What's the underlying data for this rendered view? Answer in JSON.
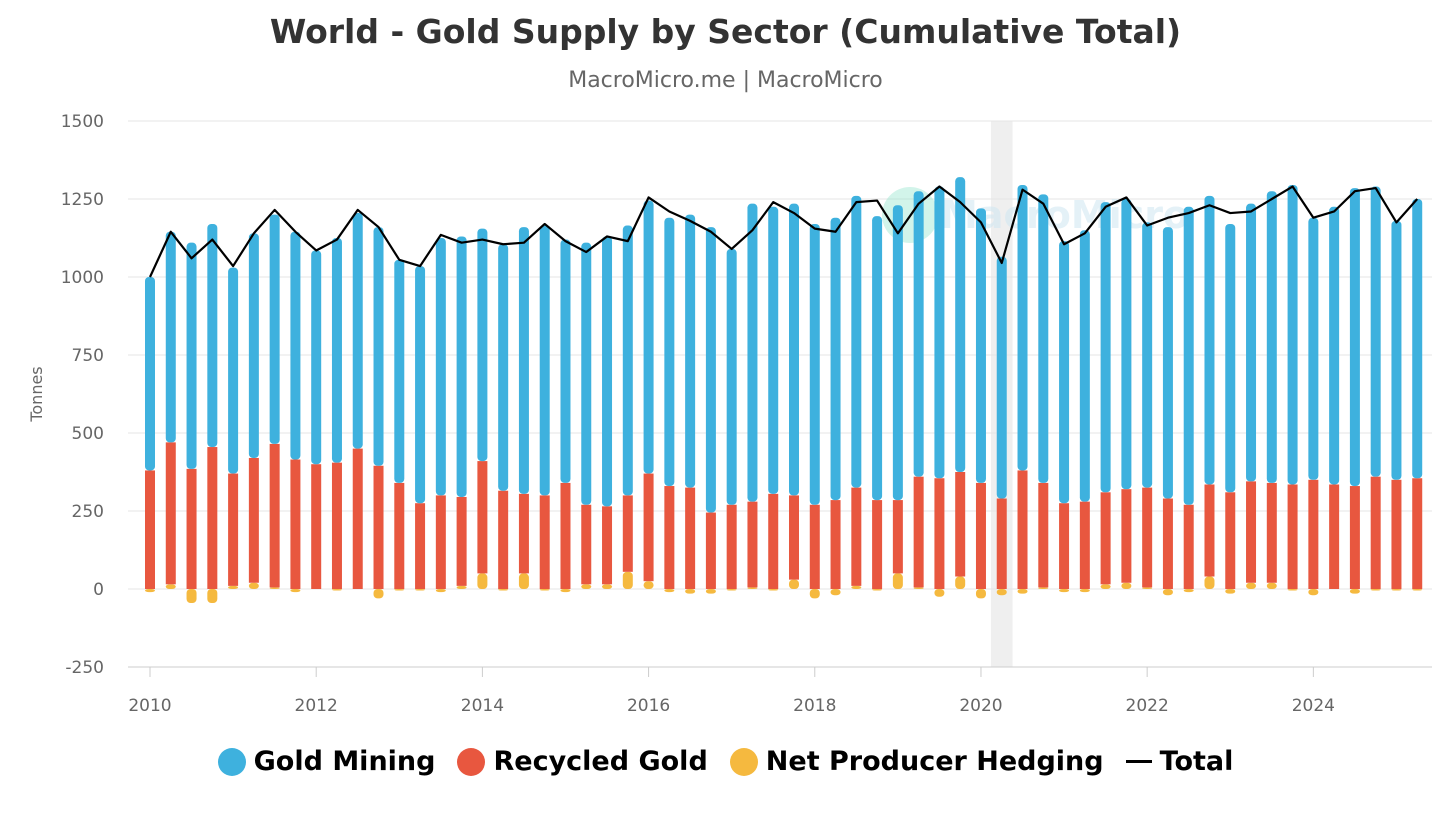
{
  "chart_data": {
    "type": "bar",
    "title": "World - Gold Supply by Sector (Cumulative Total)",
    "subtitle": "MacroMicro.me | MacroMicro",
    "watermark": "MacroMicro",
    "ylabel": "Tonnes",
    "xlabel": "",
    "ylim": [
      -250,
      1500
    ],
    "yticks": [
      "-250",
      "0",
      "250",
      "500",
      "750",
      "1000",
      "1250",
      "1500"
    ],
    "xticks": [
      "2010",
      "2012",
      "2014",
      "2016",
      "2018",
      "2020",
      "2022",
      "2024"
    ],
    "xlim": [
      2010,
      2025.5
    ],
    "grid": true,
    "legend_position": "bottom",
    "highlight_band": [
      2020.12,
      2020.38
    ],
    "x": [
      2010.0,
      2010.25,
      2010.5,
      2010.75,
      2011.0,
      2011.25,
      2011.5,
      2011.75,
      2012.0,
      2012.25,
      2012.5,
      2012.75,
      2013.0,
      2013.25,
      2013.5,
      2013.75,
      2014.0,
      2014.25,
      2014.5,
      2014.75,
      2015.0,
      2015.25,
      2015.5,
      2015.75,
      2016.0,
      2016.25,
      2016.5,
      2016.75,
      2017.0,
      2017.25,
      2017.5,
      2017.75,
      2018.0,
      2018.25,
      2018.5,
      2018.75,
      2019.0,
      2019.25,
      2019.5,
      2019.75,
      2020.0,
      2020.25,
      2020.5,
      2020.75,
      2021.0,
      2021.25,
      2021.5,
      2021.75,
      2022.0,
      2022.25,
      2022.5,
      2022.75,
      2023.0,
      2023.25,
      2023.5,
      2023.75,
      2024.0,
      2024.25,
      2024.5,
      2024.75,
      2025.0,
      2025.25
    ],
    "series": [
      {
        "name": "Net Producer Hedging",
        "color": "#f5b93f",
        "values": [
          -10,
          15,
          -45,
          -45,
          10,
          20,
          5,
          -10,
          0,
          -5,
          0,
          -30,
          -5,
          -5,
          -10,
          10,
          50,
          -5,
          50,
          -5,
          -10,
          15,
          15,
          55,
          25,
          -10,
          -15,
          -15,
          -5,
          5,
          -5,
          30,
          -30,
          -20,
          10,
          -5,
          50,
          5,
          -25,
          40,
          -30,
          -20,
          -15,
          5,
          -10,
          -10,
          15,
          20,
          5,
          -20,
          -10,
          40,
          -15,
          20,
          20,
          -5,
          -20,
          0,
          -15,
          -5,
          -5,
          -5
        ]
      },
      {
        "name": "Recycled Gold",
        "color": "#e8573f",
        "values": [
          380,
          455,
          385,
          455,
          360,
          400,
          460,
          415,
          400,
          405,
          450,
          395,
          340,
          275,
          300,
          285,
          360,
          315,
          255,
          300,
          340,
          255,
          250,
          245,
          345,
          330,
          325,
          245,
          270,
          275,
          305,
          270,
          270,
          285,
          315,
          285,
          235,
          355,
          355,
          335,
          340,
          290,
          380,
          335,
          275,
          280,
          295,
          300,
          320,
          290,
          270,
          295,
          310,
          325,
          320,
          335,
          350,
          335,
          330,
          360,
          350,
          355
        ]
      },
      {
        "name": "Gold Mining",
        "color": "#3eb1de",
        "values": [
          620,
          675,
          725,
          715,
          660,
          720,
          735,
          730,
          685,
          720,
          755,
          765,
          715,
          760,
          825,
          835,
          745,
          790,
          855,
          865,
          780,
          840,
          865,
          865,
          875,
          860,
          875,
          915,
          820,
          955,
          920,
          935,
          900,
          905,
          935,
          910,
          945,
          915,
          935,
          945,
          880,
          775,
          915,
          925,
          840,
          870,
          930,
          930,
          850,
          870,
          955,
          925,
          860,
          890,
          935,
          960,
          840,
          890,
          955,
          930,
          830,
          895
        ]
      }
    ],
    "total": {
      "name": "Total",
      "color": "#000000",
      "values": [
        1000,
        1145,
        1060,
        1120,
        1035,
        1140,
        1215,
        1145,
        1085,
        1120,
        1215,
        1160,
        1055,
        1035,
        1135,
        1110,
        1120,
        1105,
        1110,
        1170,
        1115,
        1080,
        1130,
        1115,
        1255,
        1210,
        1180,
        1145,
        1090,
        1150,
        1240,
        1205,
        1155,
        1145,
        1240,
        1245,
        1140,
        1235,
        1290,
        1240,
        1175,
        1045,
        1280,
        1235,
        1105,
        1140,
        1225,
        1255,
        1165,
        1190,
        1205,
        1230,
        1205,
        1210,
        1250,
        1290,
        1190,
        1210,
        1275,
        1285,
        1175,
        1250
      ]
    }
  }
}
